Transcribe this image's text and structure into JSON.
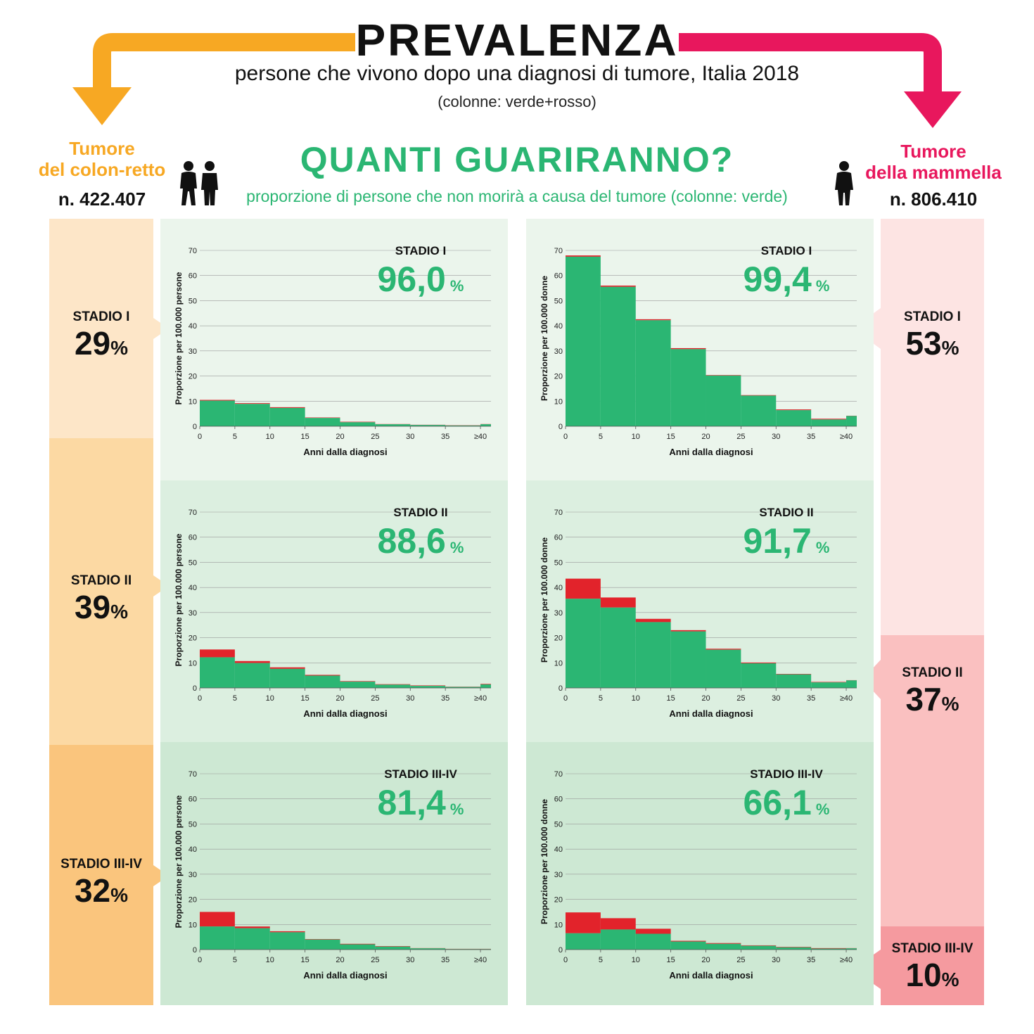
{
  "header": {
    "title": "PREVALENZA",
    "subtitle": "persone che vivono dopo una diagnosi di tumore, Italia 2018",
    "note": "(colonne: verde+rosso)",
    "question": "QUANTI GUARIRANNO?",
    "question_sub": "proporzione di persone che non morirà a causa del tumore (colonne: verde)"
  },
  "colors": {
    "orange": "#f7a823",
    "pink": "#e8175d",
    "green": "#2bb673",
    "red": "#e2232b"
  },
  "left": {
    "title_line1": "Tumore",
    "title_line2": "del colon-retto",
    "count": "n. 422.407",
    "icon": "couple-icon",
    "stages": [
      {
        "label": "STADIO I",
        "value": "29",
        "pct": "%"
      },
      {
        "label": "STADIO II",
        "value": "39",
        "pct": "%"
      },
      {
        "label": "STADIO III-IV",
        "value": "32",
        "pct": "%"
      }
    ]
  },
  "right": {
    "title_line1": "Tumore",
    "title_line2": "della mammella",
    "count": "n. 806.410",
    "icon": "woman-icon",
    "stages": [
      {
        "label": "STADIO I",
        "value": "53",
        "pct": "%"
      },
      {
        "label": "STADIO II",
        "value": "37",
        "pct": "%"
      },
      {
        "label": "STADIO III-IV",
        "value": "10",
        "pct": "%"
      }
    ]
  },
  "chart_data": [
    {
      "type": "bar",
      "cancer": "colon-retto",
      "stage_title": "STADIO I",
      "cure_value": "96,0",
      "cure_unit": "%",
      "categories": [
        "0",
        "5",
        "10",
        "15",
        "20",
        "25",
        "30",
        "35",
        "≥40"
      ],
      "ylabel": "Proporzione per 100.000 persone",
      "xlabel": "Anni dalla diagnosi",
      "ylim": [
        0,
        70
      ],
      "yticks": [
        0,
        10,
        20,
        30,
        40,
        50,
        60,
        70
      ],
      "series": [
        {
          "values_green": [
            10.2,
            8.9,
            7.3,
            3.3,
            1.6,
            0.8,
            0.5,
            0.3,
            0.8
          ]
        },
        {
          "values_total": [
            10.5,
            9.2,
            7.6,
            3.5,
            1.8,
            0.9,
            0.6,
            0.4,
            0.9
          ]
        }
      ]
    },
    {
      "type": "bar",
      "cancer": "mammella",
      "stage_title": "STADIO I",
      "cure_value": "99,4",
      "cure_unit": "%",
      "categories": [
        "0",
        "5",
        "10",
        "15",
        "20",
        "25",
        "30",
        "35",
        "≥40"
      ],
      "ylabel": "Proporzione per 100.000 donne",
      "xlabel": "Anni dalla diagnosi",
      "ylim": [
        0,
        70
      ],
      "yticks": [
        0,
        10,
        20,
        30,
        40,
        50,
        60,
        70
      ],
      "series": [
        {
          "values_green": [
            67.5,
            55.5,
            42.2,
            30.7,
            20.2,
            12.2,
            6.4,
            2.7,
            4.1
          ]
        },
        {
          "values_total": [
            68.0,
            56.0,
            42.6,
            31.1,
            20.4,
            12.4,
            6.7,
            3.0,
            4.2
          ]
        }
      ]
    },
    {
      "type": "bar",
      "cancer": "colon-retto",
      "stage_title": "STADIO II",
      "cure_value": "88,6",
      "cure_unit": "%",
      "categories": [
        "0",
        "5",
        "10",
        "15",
        "20",
        "25",
        "30",
        "35",
        "≥40"
      ],
      "ylabel": "Proporzione per 100.000 persone",
      "xlabel": "Anni dalla diagnosi",
      "ylim": [
        0,
        70
      ],
      "yticks": [
        0,
        10,
        20,
        30,
        40,
        50,
        60,
        70
      ],
      "series": [
        {
          "values_green": [
            12.2,
            9.9,
            7.6,
            4.9,
            2.5,
            1.3,
            0.8,
            0.4,
            1.4
          ]
        },
        {
          "values_total": [
            15.3,
            10.7,
            8.2,
            5.2,
            2.7,
            1.5,
            1.0,
            0.5,
            1.6
          ]
        }
      ]
    },
    {
      "type": "bar",
      "cancer": "mammella",
      "stage_title": "STADIO II",
      "cure_value": "91,7",
      "cure_unit": "%",
      "categories": [
        "0",
        "5",
        "10",
        "15",
        "20",
        "25",
        "30",
        "35",
        "≥40"
      ],
      "ylabel": "Proporzione per 100.000 donne",
      "xlabel": "Anni dalla diagnosi",
      "ylim": [
        0,
        70
      ],
      "yticks": [
        0,
        10,
        20,
        30,
        40,
        50,
        60,
        70
      ],
      "series": [
        {
          "values_green": [
            35.5,
            32.0,
            26.2,
            22.5,
            15.2,
            9.8,
            5.4,
            2.2,
            3.0
          ]
        },
        {
          "values_total": [
            43.5,
            36.0,
            27.5,
            23.0,
            15.6,
            10.1,
            5.6,
            2.4,
            3.1
          ]
        }
      ]
    },
    {
      "type": "bar",
      "cancer": "colon-retto",
      "stage_title": "STADIO III-IV",
      "cure_value": "81,4",
      "cure_unit": "%",
      "categories": [
        "0",
        "5",
        "10",
        "15",
        "20",
        "25",
        "30",
        "35",
        "≥40"
      ],
      "ylabel": "Proporzione per 100.000 persone",
      "xlabel": "Anni dalla diagnosi",
      "ylim": [
        0,
        70
      ],
      "yticks": [
        0,
        10,
        20,
        30,
        40,
        50,
        60,
        70
      ],
      "series": [
        {
          "values_green": [
            9.2,
            8.5,
            6.9,
            4.0,
            2.1,
            1.2,
            0.5,
            0.2,
            0.2
          ]
        },
        {
          "values_total": [
            15.0,
            9.2,
            7.3,
            4.2,
            2.3,
            1.4,
            0.6,
            0.3,
            0.3
          ]
        }
      ]
    },
    {
      "type": "bar",
      "cancer": "mammella",
      "stage_title": "STADIO III-IV",
      "cure_value": "66,1",
      "cure_unit": "%",
      "categories": [
        "0",
        "5",
        "10",
        "15",
        "20",
        "25",
        "30",
        "35",
        "≥40"
      ],
      "ylabel": "Proporzione per 100.000 donne",
      "xlabel": "Anni dalla diagnosi",
      "ylim": [
        0,
        70
      ],
      "yticks": [
        0,
        10,
        20,
        30,
        40,
        50,
        60,
        70
      ],
      "series": [
        {
          "values_green": [
            6.5,
            8.0,
            6.3,
            3.2,
            2.3,
            1.5,
            0.9,
            0.4,
            0.5
          ]
        },
        {
          "values_total": [
            14.8,
            12.5,
            8.3,
            3.5,
            2.6,
            1.7,
            1.1,
            0.6,
            0.6
          ]
        }
      ]
    }
  ]
}
